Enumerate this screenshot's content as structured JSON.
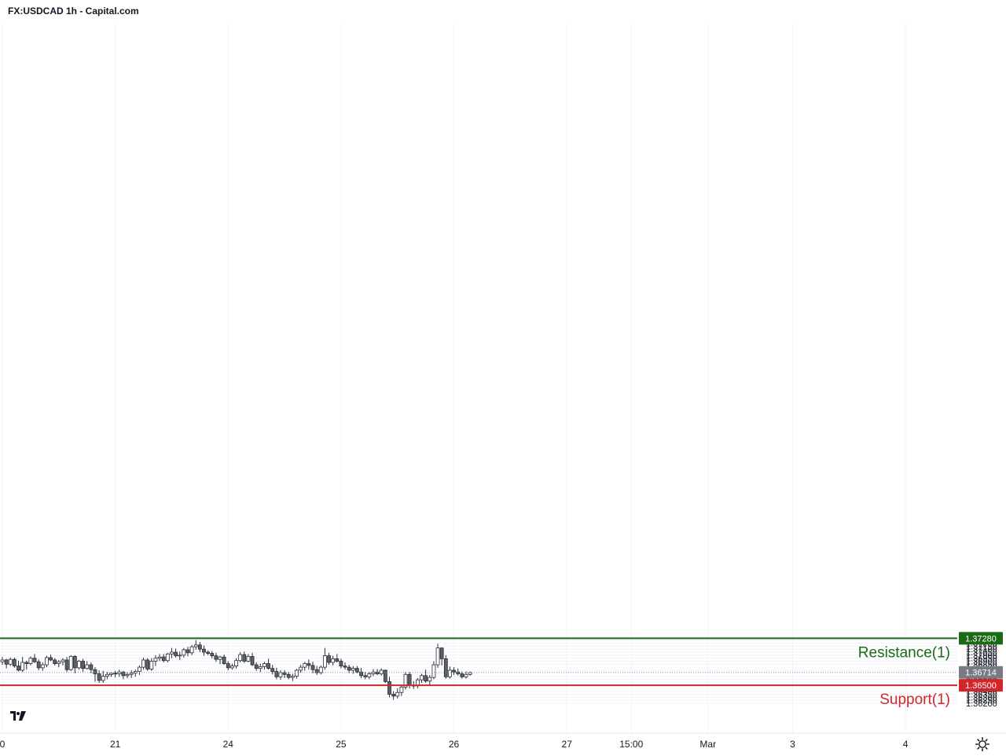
{
  "header": {
    "title": "FX:USDCAD 1h - Capital.com"
  },
  "logo": {
    "text": "TV"
  },
  "chart_data": {
    "type": "candlestick",
    "symbol": "FX:USDCAD",
    "interval": "1h",
    "ylim": [
      1.3617,
      1.3733
    ],
    "y_ticks": [
      "1.37300",
      "1.37250",
      "1.37200",
      "1.37150",
      "1.37100",
      "1.37050",
      "1.37000",
      "1.36950",
      "1.36900",
      "1.36850",
      "1.36800",
      "1.36750",
      "1.36700",
      "1.36650",
      "1.36600",
      "1.36550",
      "1.36500",
      "1.36450",
      "1.36400",
      "1.36350",
      "1.36300",
      "1.36250",
      "1.36200"
    ],
    "x_ticks": [
      "0",
      "21",
      "24",
      "25",
      "26",
      "27",
      "15:00",
      "Mar",
      "3",
      "4"
    ],
    "x_tick_positions": [
      0,
      28,
      56,
      84,
      112,
      140,
      156,
      175,
      196,
      224
    ],
    "grid": true,
    "current_price": {
      "value": 1.36714,
      "label": "1.36714"
    },
    "levels": [
      {
        "name": "Resistance(1)",
        "value": 1.3728,
        "label": "1.37280",
        "color": "#1b6b16"
      },
      {
        "name": "Support(1)",
        "value": 1.365,
        "label": "1.36500",
        "color": "#d3252a"
      }
    ],
    "candles": [
      [
        1.3689,
        1.3697,
        1.3684,
        1.3692
      ],
      [
        1.3692,
        1.3694,
        1.3678,
        1.3685
      ],
      [
        1.3685,
        1.3696,
        1.3682,
        1.3693
      ],
      [
        1.3693,
        1.3696,
        1.3679,
        1.3682
      ],
      [
        1.3682,
        1.3691,
        1.3673,
        1.3675
      ],
      [
        1.3675,
        1.3697,
        1.3672,
        1.3688
      ],
      [
        1.3688,
        1.3691,
        1.3676,
        1.3686
      ],
      [
        1.3686,
        1.3698,
        1.3683,
        1.3695
      ],
      [
        1.3695,
        1.3702,
        1.3687,
        1.3689
      ],
      [
        1.3689,
        1.3693,
        1.3675,
        1.3679
      ],
      [
        1.3679,
        1.3688,
        1.3674,
        1.3684
      ],
      [
        1.3684,
        1.3699,
        1.368,
        1.3696
      ],
      [
        1.3696,
        1.3701,
        1.369,
        1.3692
      ],
      [
        1.3692,
        1.3695,
        1.3683,
        1.3686
      ],
      [
        1.3686,
        1.3692,
        1.368,
        1.3689
      ],
      [
        1.3689,
        1.3695,
        1.3683,
        1.3692
      ],
      [
        1.3692,
        1.3697,
        1.3672,
        1.3676
      ],
      [
        1.3676,
        1.37,
        1.3674,
        1.3698
      ],
      [
        1.3698,
        1.37,
        1.367,
        1.3679
      ],
      [
        1.3679,
        1.3692,
        1.3676,
        1.369
      ],
      [
        1.369,
        1.3694,
        1.3672,
        1.3678
      ],
      [
        1.3678,
        1.369,
        1.3676,
        1.3684
      ],
      [
        1.3684,
        1.3688,
        1.367,
        1.3676
      ],
      [
        1.3676,
        1.368,
        1.3656,
        1.3669
      ],
      [
        1.3669,
        1.3675,
        1.3654,
        1.3658
      ],
      [
        1.3658,
        1.3674,
        1.3654,
        1.3665
      ],
      [
        1.3665,
        1.3672,
        1.366,
        1.3668
      ],
      [
        1.3668,
        1.3672,
        1.3664,
        1.367
      ],
      [
        1.367,
        1.3674,
        1.3663,
        1.3669
      ],
      [
        1.3669,
        1.3676,
        1.3664,
        1.3672
      ],
      [
        1.3672,
        1.3674,
        1.366,
        1.3666
      ],
      [
        1.3666,
        1.3672,
        1.3662,
        1.3668
      ],
      [
        1.3668,
        1.3675,
        1.3662,
        1.367
      ],
      [
        1.367,
        1.3676,
        1.3664,
        1.3673
      ],
      [
        1.3673,
        1.3683,
        1.3667,
        1.368
      ],
      [
        1.368,
        1.3696,
        1.3676,
        1.3692
      ],
      [
        1.3692,
        1.3695,
        1.3674,
        1.3677
      ],
      [
        1.3677,
        1.3695,
        1.3674,
        1.369
      ],
      [
        1.369,
        1.37,
        1.3682,
        1.3695
      ],
      [
        1.3695,
        1.3702,
        1.369,
        1.3697
      ],
      [
        1.3697,
        1.3702,
        1.3688,
        1.3691
      ],
      [
        1.3691,
        1.3704,
        1.3688,
        1.3702
      ],
      [
        1.3702,
        1.3712,
        1.3695,
        1.3705
      ],
      [
        1.3705,
        1.3711,
        1.3696,
        1.3699
      ],
      [
        1.3699,
        1.3706,
        1.3692,
        1.37
      ],
      [
        1.37,
        1.3712,
        1.3696,
        1.3709
      ],
      [
        1.3709,
        1.3714,
        1.3698,
        1.3704
      ],
      [
        1.3704,
        1.3717,
        1.37,
        1.3714
      ],
      [
        1.3714,
        1.3725,
        1.3709,
        1.3717
      ],
      [
        1.3717,
        1.3722,
        1.3705,
        1.371
      ],
      [
        1.371,
        1.3716,
        1.3699,
        1.3705
      ],
      [
        1.3705,
        1.3708,
        1.37,
        1.3703
      ],
      [
        1.3703,
        1.3707,
        1.3695,
        1.3699
      ],
      [
        1.3699,
        1.3704,
        1.3689,
        1.3693
      ],
      [
        1.3693,
        1.3699,
        1.3685,
        1.3697
      ],
      [
        1.3697,
        1.3701,
        1.3684,
        1.3686
      ],
      [
        1.3686,
        1.369,
        1.3675,
        1.3679
      ],
      [
        1.3679,
        1.3686,
        1.3676,
        1.3682
      ],
      [
        1.3682,
        1.3695,
        1.3678,
        1.3691
      ],
      [
        1.3691,
        1.3705,
        1.3688,
        1.3701
      ],
      [
        1.3701,
        1.3706,
        1.3687,
        1.369
      ],
      [
        1.369,
        1.3702,
        1.3688,
        1.3698
      ],
      [
        1.3698,
        1.3704,
        1.3682,
        1.3684
      ],
      [
        1.3684,
        1.3688,
        1.3674,
        1.3678
      ],
      [
        1.3678,
        1.3686,
        1.3672,
        1.3681
      ],
      [
        1.3681,
        1.3689,
        1.3676,
        1.3686
      ],
      [
        1.3686,
        1.3694,
        1.3676,
        1.3678
      ],
      [
        1.3678,
        1.3684,
        1.3668,
        1.3673
      ],
      [
        1.3673,
        1.3679,
        1.366,
        1.3664
      ],
      [
        1.3664,
        1.3675,
        1.3659,
        1.3671
      ],
      [
        1.3671,
        1.3675,
        1.3662,
        1.3668
      ],
      [
        1.3668,
        1.3672,
        1.366,
        1.3663
      ],
      [
        1.3663,
        1.3669,
        1.3657,
        1.3665
      ],
      [
        1.3665,
        1.3677,
        1.3661,
        1.3675
      ],
      [
        1.3675,
        1.3684,
        1.3671,
        1.368
      ],
      [
        1.368,
        1.3689,
        1.3674,
        1.3686
      ],
      [
        1.3686,
        1.3693,
        1.3676,
        1.3683
      ],
      [
        1.3683,
        1.3689,
        1.367,
        1.3676
      ],
      [
        1.3676,
        1.3682,
        1.3667,
        1.3671
      ],
      [
        1.3671,
        1.3683,
        1.3668,
        1.368
      ],
      [
        1.368,
        1.3712,
        1.3676,
        1.3699
      ],
      [
        1.3699,
        1.3704,
        1.3684,
        1.3688
      ],
      [
        1.3688,
        1.3699,
        1.3683,
        1.3694
      ],
      [
        1.3694,
        1.3702,
        1.3688,
        1.369
      ],
      [
        1.369,
        1.3694,
        1.3678,
        1.3682
      ],
      [
        1.3682,
        1.3688,
        1.3676,
        1.368
      ],
      [
        1.368,
        1.3684,
        1.367,
        1.3675
      ],
      [
        1.3675,
        1.3682,
        1.3669,
        1.3678
      ],
      [
        1.3678,
        1.3682,
        1.367,
        1.3672
      ],
      [
        1.3672,
        1.3679,
        1.3662,
        1.3666
      ],
      [
        1.3666,
        1.3672,
        1.366,
        1.3664
      ],
      [
        1.3664,
        1.3672,
        1.366,
        1.3669
      ],
      [
        1.3669,
        1.3677,
        1.3665,
        1.3672
      ],
      [
        1.3672,
        1.3677,
        1.3667,
        1.3669
      ],
      [
        1.3669,
        1.3678,
        1.3666,
        1.3675
      ],
      [
        1.3675,
        1.3676,
        1.3654,
        1.3656
      ],
      [
        1.3656,
        1.3664,
        1.363,
        1.3635
      ],
      [
        1.3635,
        1.364,
        1.3626,
        1.3632
      ],
      [
        1.3632,
        1.3645,
        1.3628,
        1.3638
      ],
      [
        1.3638,
        1.365,
        1.3632,
        1.3647
      ],
      [
        1.3647,
        1.3672,
        1.3643,
        1.3668
      ],
      [
        1.3668,
        1.3672,
        1.3645,
        1.365
      ],
      [
        1.365,
        1.3657,
        1.3644,
        1.3649
      ],
      [
        1.3649,
        1.3662,
        1.3645,
        1.3659
      ],
      [
        1.3659,
        1.3669,
        1.3654,
        1.3666
      ],
      [
        1.3666,
        1.3676,
        1.3654,
        1.3657
      ],
      [
        1.3657,
        1.3667,
        1.365,
        1.3663
      ],
      [
        1.3663,
        1.369,
        1.366,
        1.3684
      ],
      [
        1.3684,
        1.3719,
        1.3679,
        1.3712
      ],
      [
        1.3712,
        1.3713,
        1.3683,
        1.3694
      ],
      [
        1.3694,
        1.37,
        1.3661,
        1.3664
      ],
      [
        1.3664,
        1.3681,
        1.3661,
        1.3675
      ],
      [
        1.3675,
        1.368,
        1.3667,
        1.3672
      ],
      [
        1.3672,
        1.3678,
        1.3666,
        1.3669
      ],
      [
        1.3669,
        1.3673,
        1.3661,
        1.3664
      ],
      [
        1.3664,
        1.3673,
        1.3661,
        1.3668
      ],
      [
        1.3668,
        1.3673,
        1.3666,
        1.3671
      ]
    ]
  }
}
